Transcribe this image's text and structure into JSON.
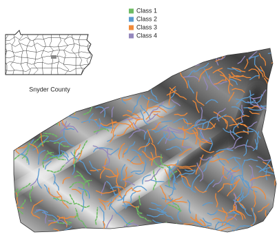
{
  "legend": {
    "items": [
      {
        "label": "Class 1",
        "color": "#6dbb63"
      },
      {
        "label": "Class 2",
        "color": "#5b9bd0"
      },
      {
        "label": "Class 3",
        "color": "#f08a3a"
      },
      {
        "label": "Class 4",
        "color": "#9487bd"
      }
    ]
  },
  "inset": {
    "caption": "Snyder County"
  }
}
